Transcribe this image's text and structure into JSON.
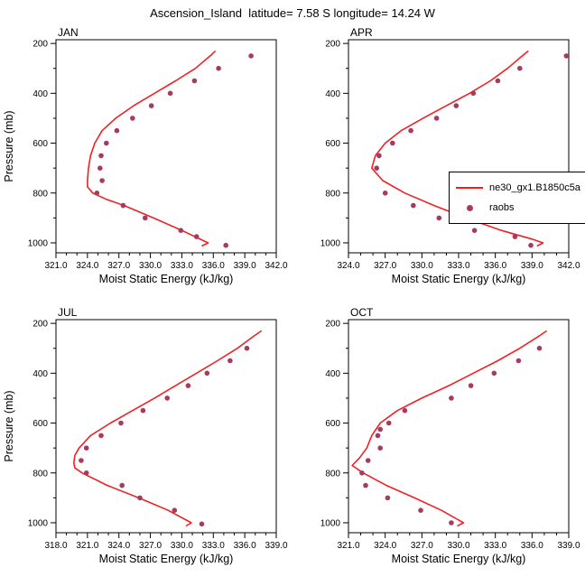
{
  "title": "Ascension_Island  latitude= 7.58 S longitude= 14.24 W",
  "colors": {
    "model": "#ee2224",
    "raobs": "#a8395f",
    "axis": "#000000"
  },
  "legend": {
    "items": [
      {
        "label": "ne30_gx1.B1850c5a",
        "type": "line",
        "color": "#ee2224"
      },
      {
        "label": "raobs",
        "type": "dot",
        "color": "#a8395f"
      }
    ]
  },
  "chart_data": [
    {
      "type": "line",
      "label": "JAN",
      "xlabel": "Moist Static Energy (kJ/kg)",
      "ylabel": "Pressure (mb)",
      "xlim": [
        321.0,
        342.0
      ],
      "xticks": [
        321.0,
        324.0,
        327.0,
        330.0,
        333.0,
        336.0,
        339.0,
        342.0
      ],
      "ylim": [
        185,
        1040
      ],
      "yticks": [
        200,
        400,
        600,
        800,
        1000
      ],
      "series": [
        {
          "name": "ne30_gx1.B1850c5a",
          "type": "line",
          "color": "#ee2224",
          "points": [
            [
              336.2,
              230
            ],
            [
              335.7,
              250
            ],
            [
              334.3,
              300
            ],
            [
              332.4,
              350
            ],
            [
              330.4,
              400
            ],
            [
              328.4,
              450
            ],
            [
              326.7,
              500
            ],
            [
              325.4,
              550
            ],
            [
              324.7,
              600
            ],
            [
              324.3,
              650
            ],
            [
              324.1,
              700
            ],
            [
              324.0,
              750
            ],
            [
              324.0,
              775
            ],
            [
              324.5,
              800
            ],
            [
              325.8,
              825
            ],
            [
              327.5,
              850
            ],
            [
              330.3,
              900
            ],
            [
              333.0,
              950
            ],
            [
              335.5,
              1000
            ],
            [
              334.9,
              1013
            ]
          ]
        },
        {
          "name": "raobs",
          "type": "scatter",
          "color": "#a8395f",
          "points": [
            [
              339.6,
              250
            ],
            [
              336.5,
              300
            ],
            [
              334.2,
              350
            ],
            [
              331.9,
              400
            ],
            [
              330.1,
              450
            ],
            [
              328.3,
              500
            ],
            [
              326.8,
              550
            ],
            [
              325.8,
              600
            ],
            [
              325.3,
              650
            ],
            [
              325.2,
              700
            ],
            [
              325.4,
              750
            ],
            [
              324.9,
              800
            ],
            [
              327.4,
              850
            ],
            [
              329.5,
              900
            ],
            [
              332.9,
              950
            ],
            [
              334.4,
              975
            ],
            [
              337.2,
              1010
            ]
          ]
        }
      ]
    },
    {
      "type": "line",
      "label": "APR",
      "xlabel": "Moist Static Energy (kJ/kg)",
      "ylabel": "",
      "xlim": [
        324.0,
        342.0
      ],
      "xticks": [
        324.0,
        327.0,
        330.0,
        333.0,
        336.0,
        339.0,
        342.0
      ],
      "ylim": [
        185,
        1040
      ],
      "yticks": [
        200,
        400,
        600,
        800,
        1000
      ],
      "series": [
        {
          "name": "ne30_gx1.B1850c5a",
          "type": "line",
          "color": "#ee2224",
          "points": [
            [
              338.7,
              230
            ],
            [
              338.2,
              250
            ],
            [
              337.0,
              300
            ],
            [
              335.6,
              350
            ],
            [
              333.9,
              400
            ],
            [
              332.0,
              450
            ],
            [
              330.1,
              500
            ],
            [
              328.3,
              550
            ],
            [
              327.0,
              600
            ],
            [
              326.2,
              650
            ],
            [
              325.9,
              700
            ],
            [
              326.8,
              750
            ],
            [
              328.6,
              800
            ],
            [
              331.0,
              850
            ],
            [
              333.6,
              900
            ],
            [
              336.5,
              950
            ],
            [
              339.0,
              985
            ],
            [
              339.9,
              1000
            ],
            [
              339.4,
              1013
            ]
          ]
        },
        {
          "name": "raobs",
          "type": "scatter",
          "color": "#a8395f",
          "points": [
            [
              341.8,
              250
            ],
            [
              338.0,
              300
            ],
            [
              336.2,
              350
            ],
            [
              334.2,
              400
            ],
            [
              332.8,
              450
            ],
            [
              331.2,
              500
            ],
            [
              329.1,
              550
            ],
            [
              327.6,
              600
            ],
            [
              326.5,
              650
            ],
            [
              326.3,
              700
            ],
            [
              327.0,
              800
            ],
            [
              329.3,
              850
            ],
            [
              331.4,
              900
            ],
            [
              334.3,
              950
            ],
            [
              337.6,
              975
            ],
            [
              338.9,
              1010
            ]
          ]
        }
      ]
    },
    {
      "type": "line",
      "label": "JUL",
      "xlabel": "Moist Static Energy (kJ/kg)",
      "ylabel": "Pressure (mb)",
      "xlim": [
        318.0,
        339.0
      ],
      "xticks": [
        318.0,
        321.0,
        324.0,
        327.0,
        330.0,
        333.0,
        336.0,
        339.0
      ],
      "ylim": [
        185,
        1040
      ],
      "yticks": [
        200,
        400,
        600,
        800,
        1000
      ],
      "series": [
        {
          "name": "ne30_gx1.B1850c5a",
          "type": "line",
          "color": "#ee2224",
          "points": [
            [
              337.6,
              230
            ],
            [
              336.9,
              250
            ],
            [
              335.3,
              300
            ],
            [
              333.4,
              350
            ],
            [
              331.4,
              400
            ],
            [
              329.4,
              450
            ],
            [
              327.4,
              500
            ],
            [
              325.3,
              550
            ],
            [
              323.2,
              600
            ],
            [
              321.3,
              650
            ],
            [
              320.2,
              700
            ],
            [
              319.8,
              730
            ],
            [
              319.7,
              760
            ],
            [
              319.8,
              780
            ],
            [
              320.5,
              800
            ],
            [
              322.9,
              850
            ],
            [
              325.9,
              900
            ],
            [
              328.7,
              950
            ],
            [
              330.9,
              1000
            ],
            [
              330.4,
              1013
            ]
          ]
        },
        {
          "name": "raobs",
          "type": "scatter",
          "color": "#a8395f",
          "points": [
            [
              336.2,
              300
            ],
            [
              334.6,
              350
            ],
            [
              332.4,
              400
            ],
            [
              330.6,
              450
            ],
            [
              328.6,
              500
            ],
            [
              326.3,
              550
            ],
            [
              324.2,
              600
            ],
            [
              322.3,
              650
            ],
            [
              320.9,
              700
            ],
            [
              320.4,
              750
            ],
            [
              320.9,
              800
            ],
            [
              324.3,
              850
            ],
            [
              326.0,
              900
            ],
            [
              329.3,
              950
            ],
            [
              331.9,
              1005
            ]
          ]
        }
      ]
    },
    {
      "type": "line",
      "label": "OCT",
      "xlabel": "Moist Static Energy (kJ/kg)",
      "ylabel": "",
      "xlim": [
        321.0,
        339.0
      ],
      "xticks": [
        321.0,
        324.0,
        327.0,
        330.0,
        333.0,
        336.0,
        339.0
      ],
      "ylim": [
        185,
        1040
      ],
      "yticks": [
        200,
        400,
        600,
        800,
        1000
      ],
      "series": [
        {
          "name": "ne30_gx1.B1850c5a",
          "type": "line",
          "color": "#ee2224",
          "points": [
            [
              337.2,
              230
            ],
            [
              336.6,
              250
            ],
            [
              335.0,
              300
            ],
            [
              333.2,
              350
            ],
            [
              331.2,
              400
            ],
            [
              329.2,
              450
            ],
            [
              327.0,
              500
            ],
            [
              325.0,
              550
            ],
            [
              323.6,
              600
            ],
            [
              322.9,
              650
            ],
            [
              322.5,
              700
            ],
            [
              321.9,
              740
            ],
            [
              321.3,
              770
            ],
            [
              322.2,
              800
            ],
            [
              324.1,
              850
            ],
            [
              326.4,
              900
            ],
            [
              328.6,
              950
            ],
            [
              330.4,
              1000
            ],
            [
              329.9,
              1013
            ]
          ]
        },
        {
          "name": "raobs",
          "type": "scatter",
          "color": "#a8395f",
          "points": [
            [
              336.6,
              300
            ],
            [
              334.9,
              350
            ],
            [
              332.9,
              400
            ],
            [
              331.0,
              450
            ],
            [
              329.4,
              500
            ],
            [
              325.6,
              550
            ],
            [
              324.3,
              600
            ],
            [
              323.6,
              625
            ],
            [
              323.4,
              650
            ],
            [
              323.6,
              700
            ],
            [
              322.6,
              750
            ],
            [
              322.1,
              800
            ],
            [
              322.4,
              850
            ],
            [
              324.2,
              900
            ],
            [
              326.9,
              950
            ],
            [
              329.4,
              1000
            ]
          ]
        }
      ]
    }
  ]
}
